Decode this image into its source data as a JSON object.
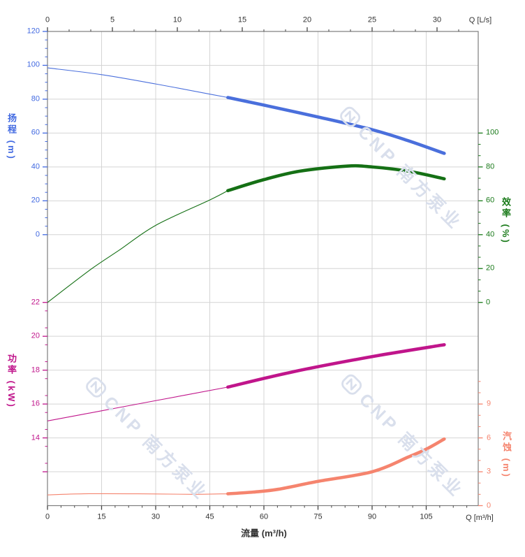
{
  "watermark": {
    "text": "CNP 南方泵业"
  },
  "axes": {
    "top": {
      "unit_label": "Q [L/s]",
      "tick_values": [
        0,
        5,
        10,
        15,
        20,
        25,
        30
      ],
      "color": "#333333"
    },
    "bottom": {
      "unit_label": "Q [m³/h]",
      "title": "流量 (m³/h)",
      "tick_values": [
        0,
        15,
        30,
        45,
        60,
        75,
        90,
        105
      ],
      "color": "#333333"
    },
    "head": {
      "title": "扬程 (m)",
      "tick_values": [
        120,
        100,
        80,
        60,
        40,
        20,
        0
      ],
      "color": "#4169e1"
    },
    "power": {
      "title": "功率 (kW)",
      "tick_values": [
        22,
        20,
        18,
        16,
        14
      ],
      "color": "#c0158b"
    },
    "efficiency": {
      "title": "效率 (%)",
      "tick_values": [
        100,
        80,
        60,
        40,
        20,
        0
      ],
      "color": "#1a7a1a"
    },
    "npsh": {
      "title": "汽蚀 (m)",
      "tick_values": [
        9,
        6,
        3,
        0
      ],
      "color": "#f5846e"
    }
  },
  "chart_data": {
    "type": "line",
    "title": "Pump performance curves (head, efficiency, power, NPSH vs flow)",
    "xlabel": "流量 (m³/h)",
    "x_top_label": "Q [L/s]",
    "x_range_m3h": [
      0,
      119.4
    ],
    "x_top_range_ls": [
      0,
      33.2
    ],
    "grid": true,
    "axis_ranges": {
      "head_m": [
        0,
        120
      ],
      "efficiency_pct": [
        0,
        100
      ],
      "power_kw": [
        14,
        22
      ],
      "npsh_m": [
        0,
        11
      ]
    },
    "series": [
      {
        "name": "head",
        "label": "扬程 (m)",
        "axis": "head",
        "color": "#4a6fdc",
        "thick_from_q": 50,
        "points": [
          [
            0,
            98.5
          ],
          [
            15,
            94.5
          ],
          [
            30,
            89
          ],
          [
            45,
            83
          ],
          [
            50,
            81
          ],
          [
            60,
            76.5
          ],
          [
            75,
            69.5
          ],
          [
            90,
            62
          ],
          [
            100,
            55.5
          ],
          [
            110,
            48
          ]
        ]
      },
      {
        "name": "efficiency",
        "label": "效率 (%)",
        "axis": "efficiency",
        "color": "#157015",
        "thick_from_q": 50,
        "points": [
          [
            0,
            0
          ],
          [
            12,
            19.5
          ],
          [
            20,
            31
          ],
          [
            30,
            45.5
          ],
          [
            45,
            60.5
          ],
          [
            50,
            66
          ],
          [
            60,
            72.5
          ],
          [
            70,
            77.5
          ],
          [
            83,
            80.5
          ],
          [
            90,
            80
          ],
          [
            100,
            77.5
          ],
          [
            110,
            73
          ]
        ]
      },
      {
        "name": "power",
        "label": "功率 (kW)",
        "axis": "power",
        "color": "#c0158b",
        "thick_from_q": 50,
        "points": [
          [
            0,
            15.0
          ],
          [
            15,
            15.6
          ],
          [
            30,
            16.2
          ],
          [
            50,
            17.0
          ],
          [
            68,
            17.9
          ],
          [
            90,
            18.8
          ],
          [
            110,
            19.5
          ]
        ]
      },
      {
        "name": "npsh",
        "label": "汽蚀 (m)",
        "axis": "npsh",
        "color": "#f5846e",
        "thick_from_q": 50,
        "points": [
          [
            0,
            0.95
          ],
          [
            10,
            1.05
          ],
          [
            25,
            1.05
          ],
          [
            40,
            1.0
          ],
          [
            50,
            1.05
          ],
          [
            57,
            1.2
          ],
          [
            64,
            1.45
          ],
          [
            75,
            2.15
          ],
          [
            90,
            3.0
          ],
          [
            100,
            4.3
          ],
          [
            105,
            5.0
          ],
          [
            110,
            5.9
          ]
        ]
      }
    ]
  }
}
